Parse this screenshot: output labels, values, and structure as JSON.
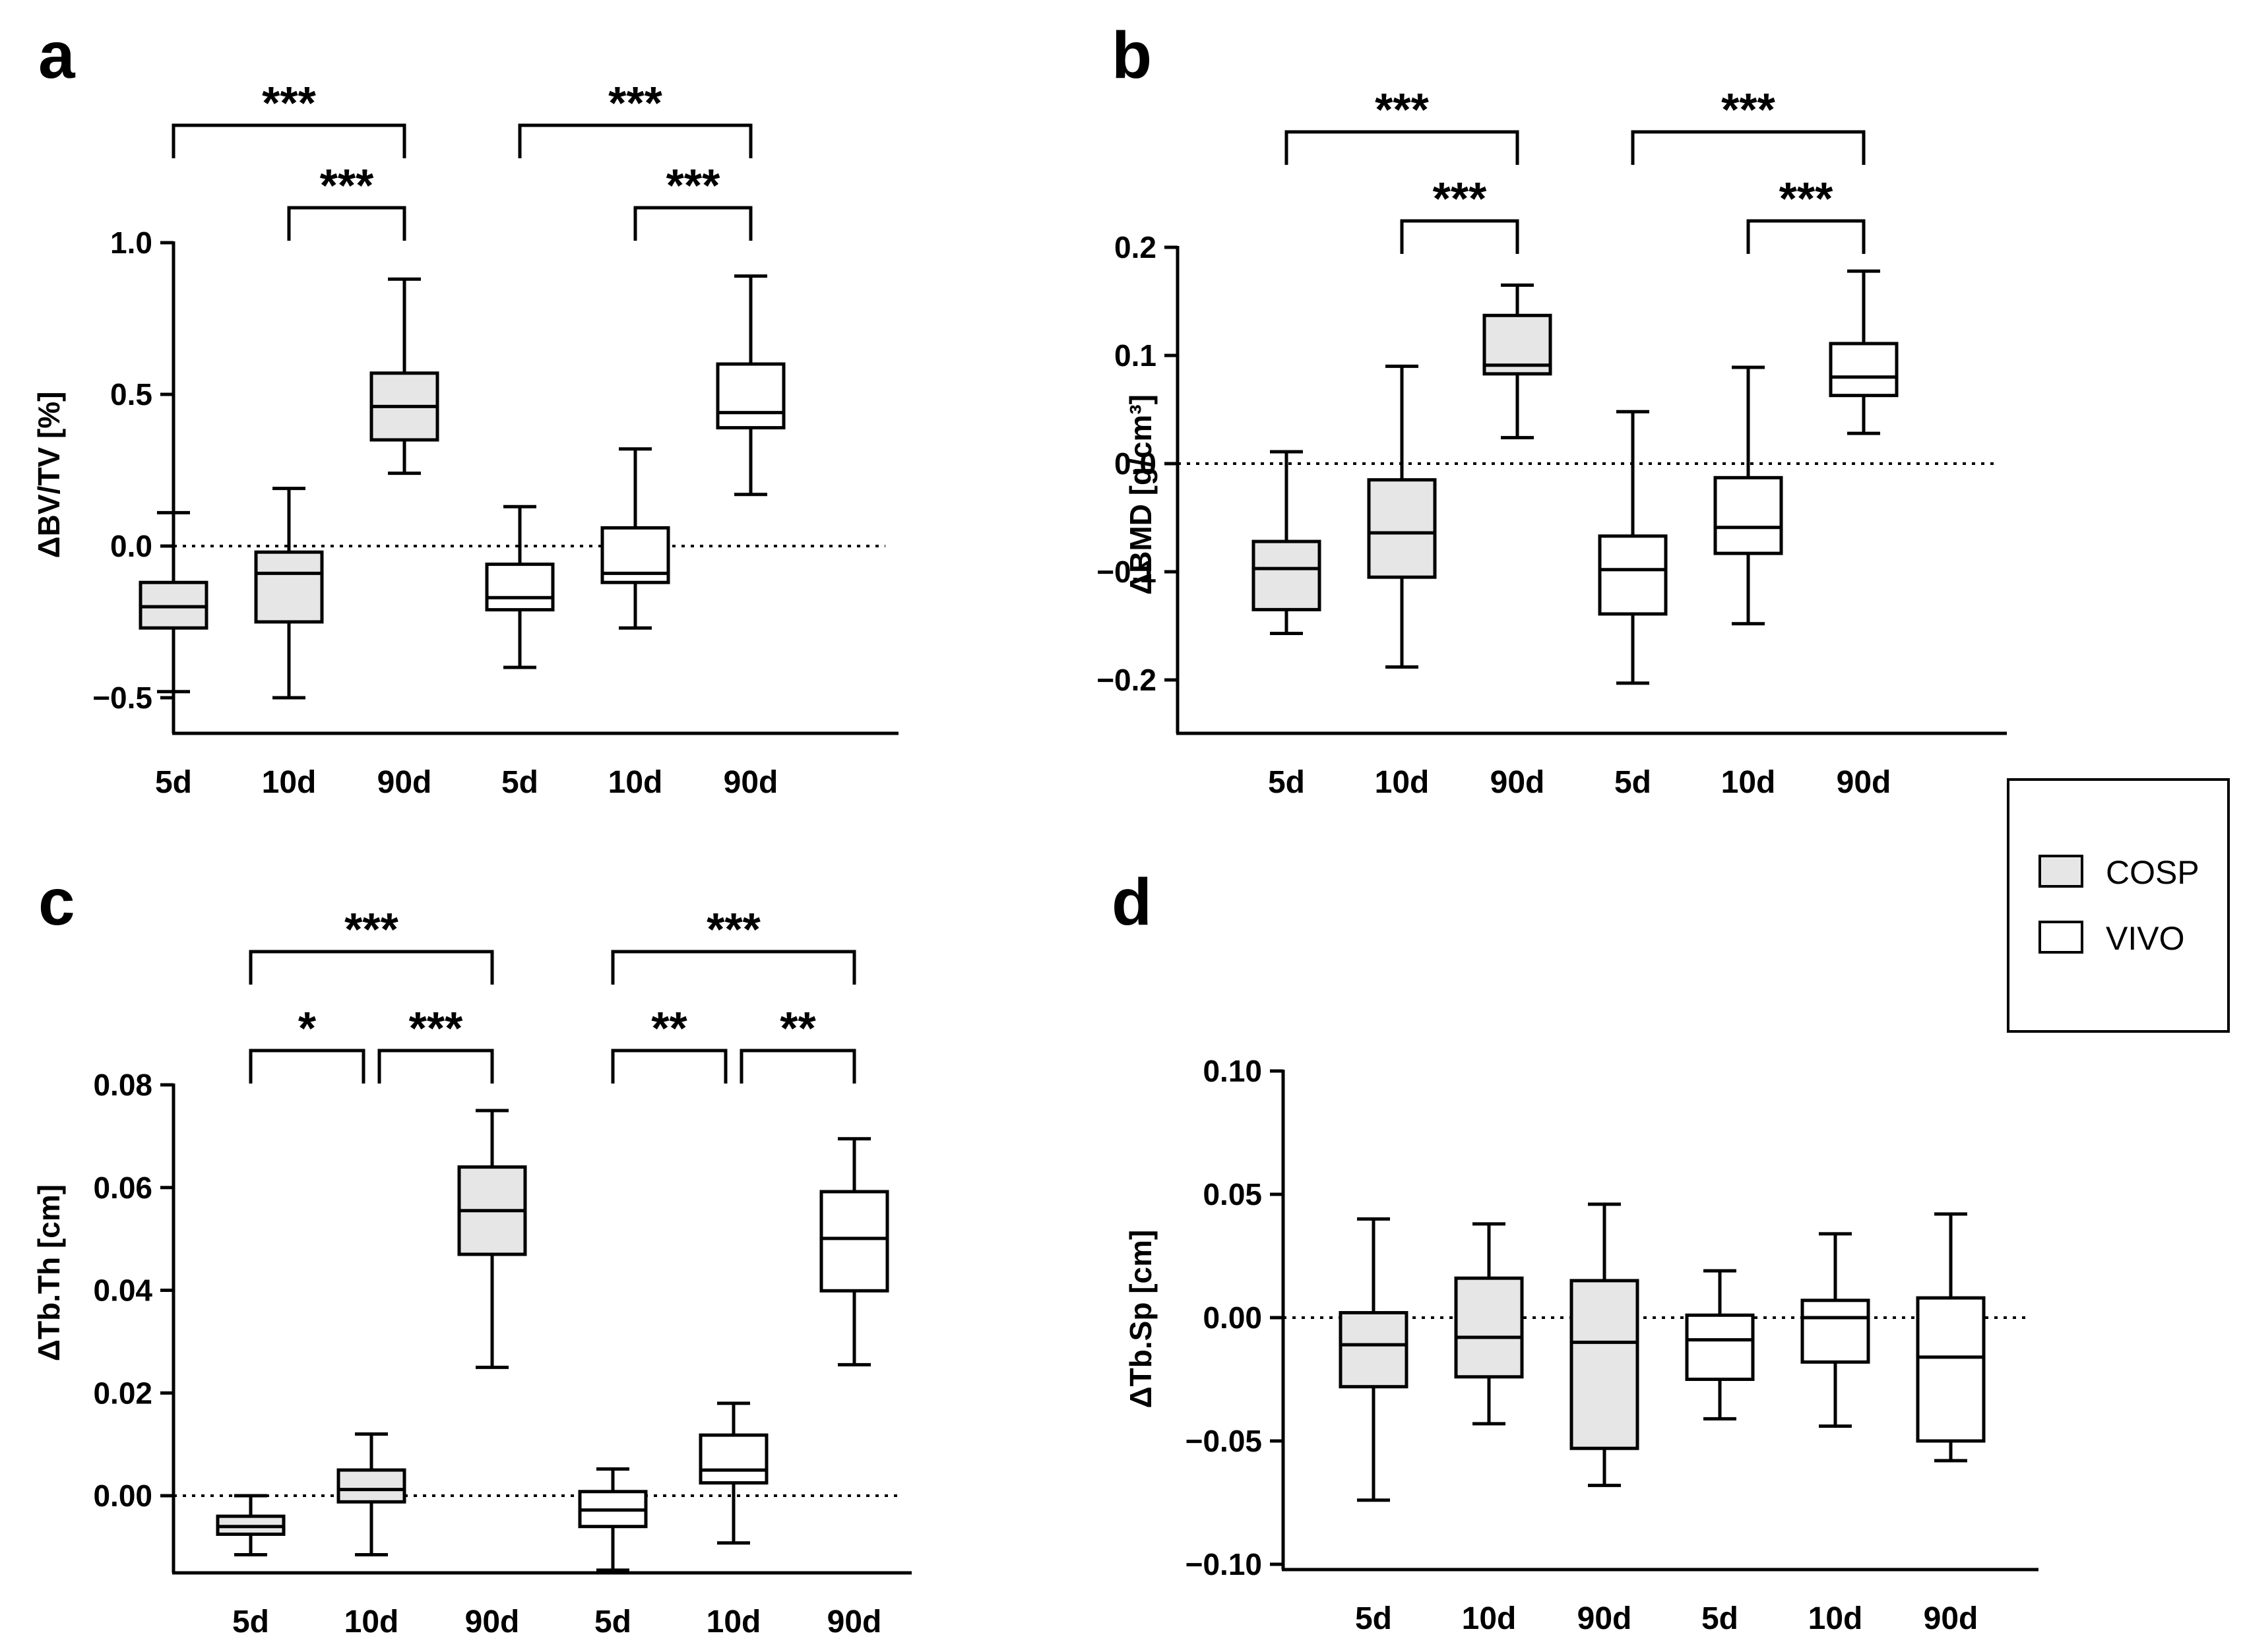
{
  "colors": {
    "COSP": "#e6e6e6",
    "VIVO": "#ffffff",
    "stroke": "#000000"
  },
  "legend": {
    "items": [
      {
        "label": "COSP"
      },
      {
        "label": "VIVO"
      }
    ]
  },
  "chart_data": [
    {
      "type": "box",
      "panel": "a",
      "ylabel": "ΔBV/TV [%]",
      "ylim": [
        -0.55,
        1.0
      ],
      "yticks": [
        -0.5,
        0.0,
        0.5,
        1.0
      ],
      "ytick_labels": [
        "−0.5",
        "0.0",
        "0.5",
        "1.0"
      ],
      "zero_line": true,
      "categories": [
        "5d",
        "10d",
        "90d",
        "5d",
        "10d",
        "90d"
      ],
      "boxes": [
        {
          "group": "COSP",
          "min": -0.48,
          "q1": -0.27,
          "median": -0.2,
          "q3": -0.12,
          "max": 0.11
        },
        {
          "group": "COSP",
          "min": -0.5,
          "q1": -0.25,
          "median": -0.09,
          "q3": -0.02,
          "max": 0.19
        },
        {
          "group": "COSP",
          "min": 0.24,
          "q1": 0.35,
          "median": 0.46,
          "q3": 0.57,
          "max": 0.88
        },
        {
          "group": "VIVO",
          "min": -0.4,
          "q1": -0.21,
          "median": -0.17,
          "q3": -0.06,
          "max": 0.13
        },
        {
          "group": "VIVO",
          "min": -0.27,
          "q1": -0.12,
          "median": -0.09,
          "q3": 0.06,
          "max": 0.32
        },
        {
          "group": "VIVO",
          "min": 0.17,
          "q1": 0.39,
          "median": 0.44,
          "q3": 0.6,
          "max": 0.89
        }
      ],
      "significance": [
        {
          "from": 0,
          "to": 2,
          "label": "***",
          "level": 0
        },
        {
          "from": 1,
          "to": 2,
          "label": "***",
          "level": 1
        },
        {
          "from": 3,
          "to": 5,
          "label": "***",
          "level": 0
        },
        {
          "from": 4,
          "to": 5,
          "label": "***",
          "level": 1
        }
      ]
    },
    {
      "type": "box",
      "panel": "b",
      "ylabel": "ΔBMD [g/cm³]",
      "ylim": [
        -0.25,
        0.2
      ],
      "yticks": [
        -0.2,
        -0.1,
        0.0,
        0.1,
        0.2
      ],
      "ytick_labels": [
        "−0.2",
        "−0.1",
        "0.0",
        "0.1",
        "0.2"
      ],
      "zero_line": true,
      "categories": [
        "5d",
        "10d",
        "90d",
        "5d",
        "10d",
        "90d"
      ],
      "boxes": [
        {
          "group": "COSP",
          "min": -0.157,
          "q1": -0.135,
          "median": -0.097,
          "q3": -0.072,
          "max": 0.011
        },
        {
          "group": "COSP",
          "min": -0.188,
          "q1": -0.105,
          "median": -0.064,
          "q3": -0.015,
          "max": 0.09
        },
        {
          "group": "COSP",
          "min": 0.024,
          "q1": 0.083,
          "median": 0.091,
          "q3": 0.137,
          "max": 0.165
        },
        {
          "group": "VIVO",
          "min": -0.203,
          "q1": -0.139,
          "median": -0.098,
          "q3": -0.067,
          "max": 0.048
        },
        {
          "group": "VIVO",
          "min": -0.148,
          "q1": -0.083,
          "median": -0.059,
          "q3": -0.013,
          "max": 0.089
        },
        {
          "group": "VIVO",
          "min": 0.028,
          "q1": 0.063,
          "median": 0.08,
          "q3": 0.111,
          "max": 0.178
        }
      ],
      "significance": [
        {
          "from": 0,
          "to": 2,
          "label": "***",
          "level": 0
        },
        {
          "from": 1,
          "to": 2,
          "label": "***",
          "level": 1
        },
        {
          "from": 3,
          "to": 5,
          "label": "***",
          "level": 0
        },
        {
          "from": 4,
          "to": 5,
          "label": "***",
          "level": 1
        }
      ]
    },
    {
      "type": "box",
      "panel": "c",
      "ylabel": "ΔTb.Th [cm]",
      "ylim": [
        -0.015,
        0.08
      ],
      "yticks": [
        0.0,
        0.02,
        0.04,
        0.06,
        0.08
      ],
      "ytick_labels": [
        "0.00",
        "0.02",
        "0.04",
        "0.06",
        "0.08"
      ],
      "zero_line": true,
      "categories": [
        "5d",
        "10d",
        "90d",
        "5d",
        "10d",
        "90d"
      ],
      "boxes": [
        {
          "group": "COSP",
          "min": -0.0115,
          "q1": -0.0075,
          "median": -0.006,
          "q3": -0.004,
          "max": 0.0
        },
        {
          "group": "COSP",
          "min": -0.0115,
          "q1": -0.0012,
          "median": 0.0012,
          "q3": 0.005,
          "max": 0.012
        },
        {
          "group": "COSP",
          "min": 0.025,
          "q1": 0.047,
          "median": 0.0555,
          "q3": 0.064,
          "max": 0.075
        },
        {
          "group": "VIVO",
          "min": -0.0145,
          "q1": -0.006,
          "median": -0.0028,
          "q3": 0.0008,
          "max": 0.0052
        },
        {
          "group": "VIVO",
          "min": -0.0092,
          "q1": 0.0025,
          "median": 0.005,
          "q3": 0.0118,
          "max": 0.018
        },
        {
          "group": "VIVO",
          "min": 0.0255,
          "q1": 0.0399,
          "median": 0.0501,
          "q3": 0.0592,
          "max": 0.0695
        }
      ],
      "significance": [
        {
          "from": 0,
          "to": 2,
          "label": "***",
          "level": 0
        },
        {
          "from": 0,
          "to": 1,
          "label": "*",
          "level": 1
        },
        {
          "from": 1,
          "to": 2,
          "label": "***",
          "level": 1
        },
        {
          "from": 3,
          "to": 5,
          "label": "***",
          "level": 0
        },
        {
          "from": 3,
          "to": 4,
          "label": "**",
          "level": 1
        },
        {
          "from": 4,
          "to": 5,
          "label": "**",
          "level": 1
        }
      ]
    },
    {
      "type": "box",
      "panel": "d",
      "ylabel": "ΔTb.Sp [cm]",
      "ylim": [
        -0.1,
        0.1
      ],
      "yticks": [
        -0.1,
        -0.05,
        0.0,
        0.05,
        0.1
      ],
      "ytick_labels": [
        "−0.10",
        "−0.05",
        "0.00",
        "0.05",
        "0.10"
      ],
      "zero_line": true,
      "categories": [
        "5d",
        "10d",
        "90d",
        "5d",
        "10d",
        "90d"
      ],
      "boxes": [
        {
          "group": "COSP",
          "min": -0.074,
          "q1": -0.028,
          "median": -0.011,
          "q3": 0.002,
          "max": 0.04
        },
        {
          "group": "COSP",
          "min": -0.043,
          "q1": -0.024,
          "median": -0.008,
          "q3": 0.016,
          "max": 0.038
        },
        {
          "group": "COSP",
          "min": -0.068,
          "q1": -0.053,
          "median": -0.01,
          "q3": 0.015,
          "max": 0.046
        },
        {
          "group": "VIVO",
          "min": -0.041,
          "q1": -0.025,
          "median": -0.009,
          "q3": 0.001,
          "max": 0.019
        },
        {
          "group": "VIVO",
          "min": -0.044,
          "q1": -0.018,
          "median": 0.0,
          "q3": 0.007,
          "max": 0.034
        },
        {
          "group": "VIVO",
          "min": -0.058,
          "q1": -0.05,
          "median": -0.016,
          "q3": 0.008,
          "max": 0.042
        }
      ],
      "significance": []
    }
  ]
}
